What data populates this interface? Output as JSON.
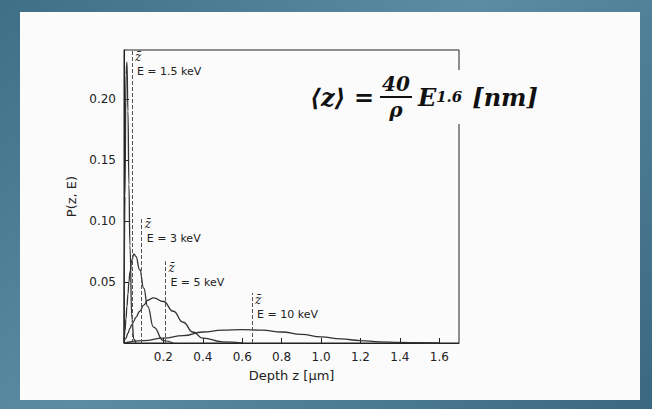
{
  "chart_data": {
    "type": "line",
    "x_label": "Depth z [µm]",
    "y_label": "P(z, E)",
    "xlim": [
      0,
      1.7
    ],
    "xticks": [
      0.2,
      0.4,
      0.6,
      0.8,
      {
        "value": 1,
        "label": "1.0"
      },
      1.2,
      1.4,
      1.6
    ],
    "ylim": [
      0,
      0.24
    ],
    "yticks": [
      0.05,
      {
        "value": 0.1,
        "label": "0.10"
      },
      0.15,
      {
        "value": 0.2,
        "label": "0.20"
      }
    ],
    "grid": false,
    "marker": "none",
    "line_style": "solid",
    "mean_label": "z̄",
    "formula": {
      "lhs": "⟨z⟩ =",
      "numerator": "40",
      "denominator": "ρ",
      "base": "E",
      "exponent": "1.6",
      "unit": "[nm]"
    },
    "series": [
      {
        "name": "E = 1.5 keV",
        "color": "#333333",
        "mean": 0.04,
        "x": [
          0,
          0.005,
          0.01,
          0.015,
          0.02,
          0.025,
          0.03,
          0.04,
          0.05,
          0.06
        ],
        "values": [
          0,
          0.12,
          0.22,
          0.23,
          0.19,
          0.13,
          0.08,
          0.02,
          0.003,
          0
        ]
      },
      {
        "name": "E = 3 keV",
        "color": "#333333",
        "mean": 0.09,
        "x": [
          0,
          0.005,
          0.01,
          0.015,
          0.02,
          0.025,
          0.03,
          0.04,
          0.05,
          0.06,
          0.08,
          0.1,
          0.12,
          0.15,
          0.2,
          0.25
        ],
        "values": [
          0,
          0.01,
          0.02,
          0.03,
          0.04,
          0.05,
          0.058,
          0.068,
          0.073,
          0.071,
          0.06,
          0.045,
          0.03,
          0.013,
          0.002,
          0
        ]
      },
      {
        "name": "E = 5 keV",
        "color": "#333333",
        "mean": 0.21,
        "x": [
          0,
          0.01,
          0.02,
          0.03,
          0.04,
          0.05,
          0.06,
          0.08,
          0.1,
          0.12,
          0.15,
          0.2,
          0.25,
          0.3,
          0.35,
          0.4,
          0.5,
          0.6
        ],
        "values": [
          0,
          0.004,
          0.008,
          0.012,
          0.015,
          0.018,
          0.021,
          0.026,
          0.031,
          0.035,
          0.037,
          0.034,
          0.026,
          0.017,
          0.009,
          0.004,
          0.001,
          0
        ]
      },
      {
        "name": "E = 10 keV",
        "color": "#333333",
        "mean": 0.65,
        "x": [
          0,
          0.1,
          0.2,
          0.3,
          0.4,
          0.5,
          0.6,
          0.7,
          0.8,
          0.9,
          1.0,
          1.1,
          1.2,
          1.3,
          1.4,
          1.5,
          1.6
        ],
        "values": [
          0,
          0.002,
          0.004,
          0.006,
          0.009,
          0.0105,
          0.011,
          0.0105,
          0.009,
          0.007,
          0.005,
          0.0033,
          0.002,
          0.001,
          0.0005,
          0.0002,
          0
        ]
      }
    ]
  }
}
